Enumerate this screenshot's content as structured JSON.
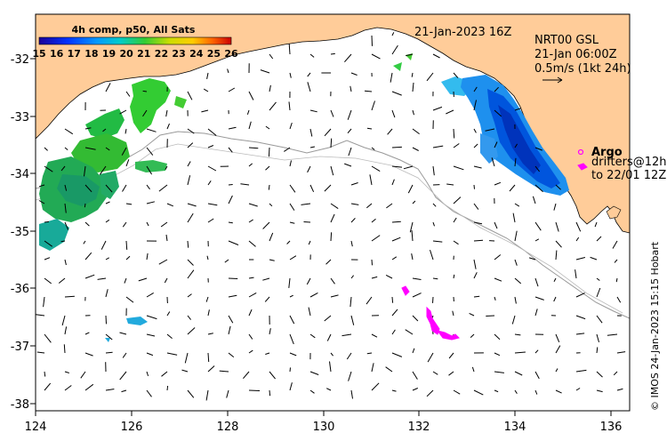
{
  "map": {
    "datetime": "21-Jan-2023 16Z",
    "colorbar": {
      "title": "4h comp, p50, All Sats",
      "ticks": [
        "15",
        "16",
        "17",
        "18",
        "19",
        "20",
        "21",
        "22",
        "23",
        "24",
        "25",
        "26"
      ]
    },
    "currents": {
      "product": "NRT00 GSL",
      "time": "21-Jan 06:00Z",
      "scale": "0.5m/s (1kt 24h)"
    },
    "legend": {
      "argo": "Argo",
      "drifters_line1": "drifters@12h",
      "drifters_line2": "to 22/01 12Z"
    },
    "credit": "© IMOS 24-Jan-2023 15:15 Hobart",
    "axes": {
      "longitude_ticks": [
        "124",
        "126",
        "128",
        "130",
        "132",
        "134",
        "136"
      ],
      "latitude_ticks": [
        "-32",
        "-33",
        "-34",
        "-35",
        "-36",
        "-37",
        "-38"
      ],
      "lon_range": [
        124,
        136.5
      ],
      "lat_range": [
        -38.1,
        -31.3
      ]
    },
    "colors": {
      "land": "#FFCC99",
      "sea": "#FFFFFF",
      "drifters": "#FF00FF",
      "isobath": "#999999"
    }
  }
}
